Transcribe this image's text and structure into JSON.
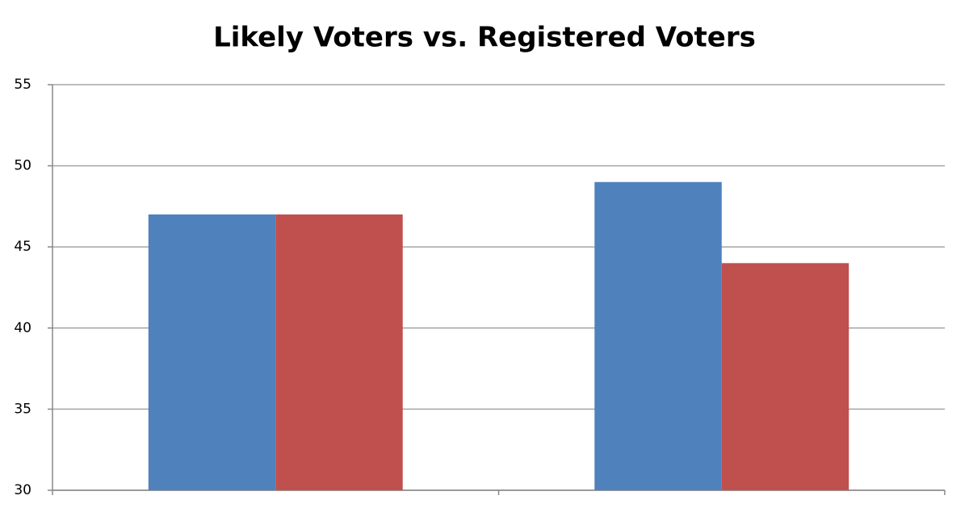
{
  "chart_data": {
    "type": "bar",
    "title": "Likely Voters vs. Registered Voters",
    "categories": [
      null,
      null
    ],
    "series": [
      {
        "color": "#4f81bd",
        "values": [
          47,
          49
        ]
      },
      {
        "color": "#c0504d",
        "values": [
          47,
          44
        ]
      }
    ],
    "ylim": [
      30,
      55
    ],
    "yticks": [
      30,
      35,
      40,
      45,
      50,
      55
    ],
    "grid": true
  }
}
